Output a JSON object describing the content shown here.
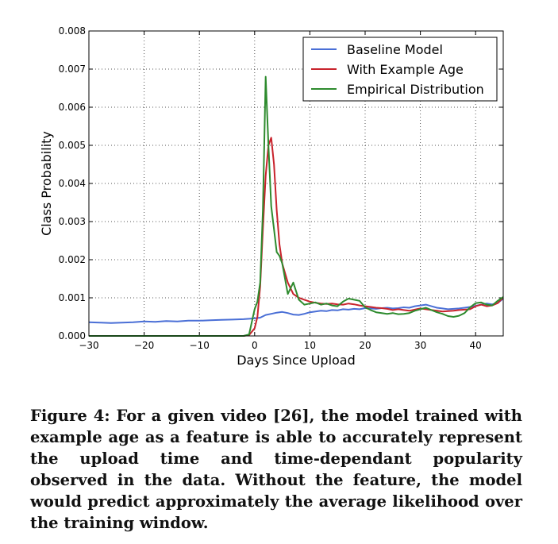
{
  "chart_data": {
    "type": "line",
    "xlabel": "Days Since Upload",
    "ylabel": "Class Probability",
    "xlim": [
      -30,
      45
    ],
    "ylim": [
      0,
      0.008
    ],
    "xticks": [
      -30,
      -20,
      -10,
      0,
      10,
      20,
      30,
      40
    ],
    "xtick_labels": [
      "−30",
      "−20",
      "−10",
      "0",
      "10",
      "20",
      "30",
      "40"
    ],
    "yticks": [
      0,
      0.001,
      0.002,
      0.003,
      0.004,
      0.005,
      0.006,
      0.007,
      0.008
    ],
    "ytick_labels": [
      "0.000",
      "0.001",
      "0.002",
      "0.003",
      "0.004",
      "0.005",
      "0.006",
      "0.007",
      "0.008"
    ],
    "grid": true,
    "legend_position": "top-right",
    "series": [
      {
        "name": "Baseline Model",
        "color": "#4a6fd6",
        "x": [
          -30,
          -28,
          -26,
          -24,
          -22,
          -20,
          -18,
          -16,
          -14,
          -12,
          -10,
          -8,
          -6,
          -4,
          -2,
          0,
          1,
          2,
          3,
          4,
          5,
          6,
          7,
          8,
          9,
          10,
          11,
          12,
          13,
          14,
          15,
          16,
          17,
          18,
          19,
          20,
          21,
          22,
          23,
          24,
          25,
          26,
          27,
          28,
          29,
          30,
          31,
          32,
          33,
          34,
          35,
          36,
          37,
          38,
          39,
          40,
          41,
          42,
          43,
          44,
          45
        ],
        "y": [
          0.00036,
          0.00035,
          0.00034,
          0.00035,
          0.00036,
          0.00038,
          0.00037,
          0.00039,
          0.00038,
          0.0004,
          0.0004,
          0.00041,
          0.00042,
          0.00043,
          0.00044,
          0.00046,
          0.00048,
          0.00055,
          0.00058,
          0.00061,
          0.00063,
          0.0006,
          0.00056,
          0.00055,
          0.00058,
          0.00062,
          0.00064,
          0.00066,
          0.00065,
          0.00068,
          0.00067,
          0.0007,
          0.00069,
          0.00071,
          0.0007,
          0.00073,
          0.00072,
          0.00071,
          0.00073,
          0.00074,
          0.00072,
          0.00073,
          0.00075,
          0.00074,
          0.00078,
          0.0008,
          0.00082,
          0.00078,
          0.00074,
          0.00072,
          0.0007,
          0.00071,
          0.00072,
          0.00074,
          0.00076,
          0.00079,
          0.00082,
          0.00085,
          0.00083,
          0.00086,
          0.00098
        ]
      },
      {
        "name": "With Example Age",
        "color": "#c8232c",
        "x": [
          -30,
          -20,
          -10,
          -4,
          -2,
          -1,
          0,
          0.5,
          1,
          1.5,
          2,
          2.5,
          3,
          3.5,
          4,
          4.5,
          5,
          6,
          7,
          8,
          9,
          10,
          11,
          12,
          13,
          14,
          15,
          16,
          17,
          18,
          19,
          20,
          21,
          22,
          23,
          24,
          25,
          26,
          27,
          28,
          29,
          30,
          31,
          32,
          33,
          34,
          35,
          36,
          37,
          38,
          39,
          40,
          41,
          42,
          43,
          44,
          45
        ],
        "y": [
          0,
          0,
          0,
          0,
          0,
          2e-05,
          0.0002,
          0.0005,
          0.0013,
          0.0028,
          0.0042,
          0.005,
          0.0052,
          0.0045,
          0.0033,
          0.0024,
          0.0019,
          0.0014,
          0.0011,
          0.001,
          0.00095,
          0.0009,
          0.00087,
          0.00085,
          0.00084,
          0.00085,
          0.00083,
          0.00082,
          0.00085,
          0.00083,
          0.0008,
          0.00078,
          0.00076,
          0.00074,
          0.00073,
          0.00071,
          0.00068,
          0.0007,
          0.00068,
          0.00066,
          0.00069,
          0.00072,
          0.0007,
          0.00068,
          0.00066,
          0.00064,
          0.00065,
          0.00066,
          0.00068,
          0.00069,
          0.0007,
          0.00078,
          0.00082,
          0.00078,
          0.0008,
          0.00086,
          0.00101
        ]
      },
      {
        "name": "Empirical Distribution",
        "color": "#2e8b2e",
        "x": [
          -30,
          -20,
          -10,
          -4,
          -2,
          -1,
          0,
          0.5,
          1,
          1.5,
          2,
          2.5,
          3,
          3.5,
          4,
          4.5,
          5,
          6,
          7,
          8,
          9,
          10,
          11,
          12,
          13,
          14,
          15,
          16,
          17,
          18,
          19,
          20,
          21,
          22,
          23,
          24,
          25,
          26,
          27,
          28,
          29,
          30,
          31,
          32,
          33,
          34,
          35,
          36,
          37,
          38,
          39,
          40,
          41,
          42,
          43,
          44,
          45
        ],
        "y": [
          0,
          0,
          0,
          0,
          0,
          4e-05,
          0.0007,
          0.0009,
          0.0014,
          0.0033,
          0.0068,
          0.005,
          0.0034,
          0.0028,
          0.0022,
          0.0021,
          0.0019,
          0.0011,
          0.0014,
          0.00095,
          0.00082,
          0.00085,
          0.00088,
          0.00082,
          0.00085,
          0.0008,
          0.00078,
          0.0009,
          0.00098,
          0.00095,
          0.00092,
          0.00075,
          0.00068,
          0.00062,
          0.0006,
          0.00058,
          0.0006,
          0.00057,
          0.00058,
          0.0006,
          0.00066,
          0.0007,
          0.00074,
          0.00068,
          0.00062,
          0.00058,
          0.00052,
          0.0005,
          0.00053,
          0.0006,
          0.00075,
          0.00086,
          0.00088,
          0.00082,
          0.0008,
          0.00092,
          0.00102
        ]
      }
    ]
  },
  "caption": "Figure 4: For a given video [26], the model trained with example age as a feature is able to accurately represent the upload time and time-dependant popularity observed in the data. Without the feature, the model would predict approximately the average likelihood over the training window."
}
